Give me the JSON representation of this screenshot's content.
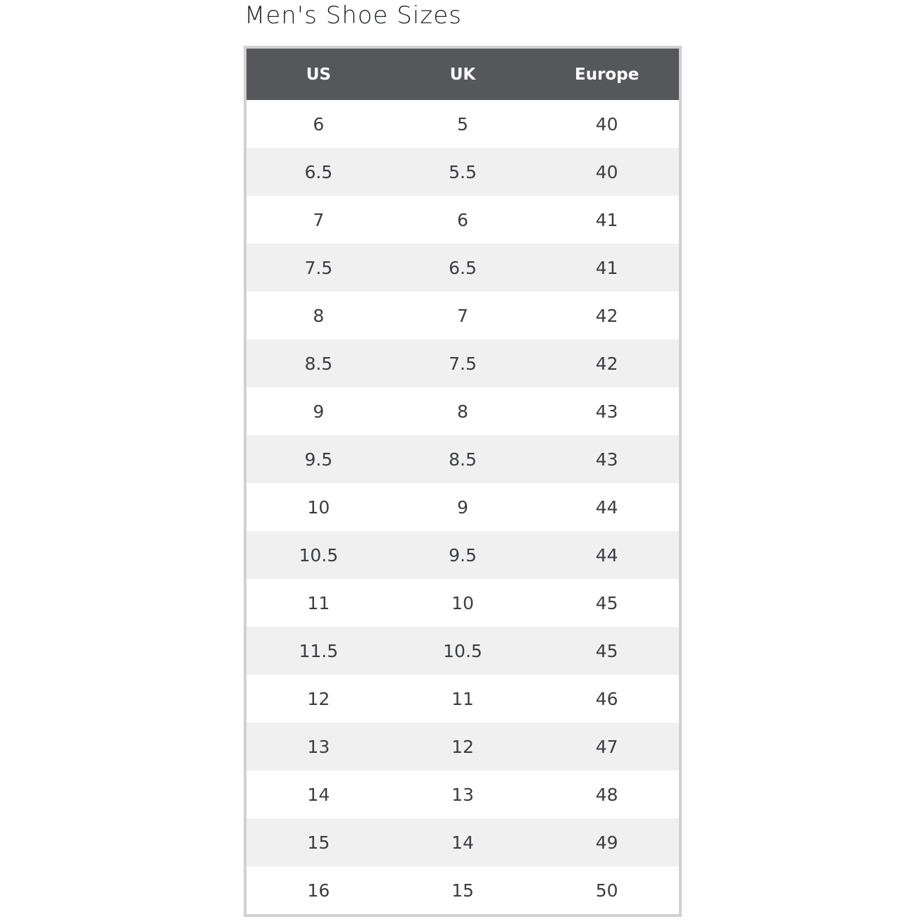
{
  "title": "Men's Shoe Sizes",
  "columns": [
    "US",
    "UK",
    "Europe"
  ],
  "rows": [
    [
      "6",
      "5",
      "40"
    ],
    [
      "6.5",
      "5.5",
      "40"
    ],
    [
      "7",
      "6",
      "41"
    ],
    [
      "7.5",
      "6.5",
      "41"
    ],
    [
      "8",
      "7",
      "42"
    ],
    [
      "8.5",
      "7.5",
      "42"
    ],
    [
      "9",
      "8",
      "43"
    ],
    [
      "9.5",
      "8.5",
      "43"
    ],
    [
      "10",
      "9",
      "44"
    ],
    [
      "10.5",
      "9.5",
      "44"
    ],
    [
      "11",
      "10",
      "45"
    ],
    [
      "11.5",
      "10.5",
      "45"
    ],
    [
      "12",
      "11",
      "46"
    ],
    [
      "13",
      "12",
      "47"
    ],
    [
      "14",
      "13",
      "48"
    ],
    [
      "15",
      "14",
      "49"
    ],
    [
      "16",
      "15",
      "50"
    ]
  ],
  "colors": {
    "header_bg": "#56575b",
    "alt_row": "#f0f0f0",
    "border": "#d0d0d0"
  }
}
